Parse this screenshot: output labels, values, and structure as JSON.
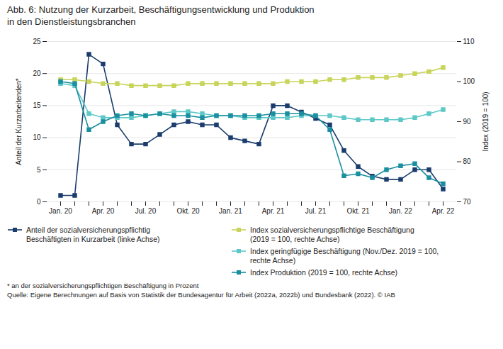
{
  "chart_data": {
    "type": "line",
    "title": "Abb. 6: Nutzung der Kurzarbeit, Beschäftigungsentwicklung und Produktion\nin den Dienstleistungsbranchen",
    "ylabel": "Anteil der Kurzarbeitenden*",
    "y2label": "Index (2019 = 100)",
    "categories": [
      "Jan. 20",
      null,
      null,
      "Apr. 20",
      null,
      null,
      "Jul. 20",
      null,
      null,
      "Okt. 20",
      null,
      null,
      "Jan. 21",
      null,
      null,
      "Apr. 21",
      null,
      null,
      "Jul. 21",
      null,
      null,
      "Okt. 21",
      null,
      null,
      "Jan. 22",
      null,
      null,
      "Apr. 22"
    ],
    "ylim": [
      0,
      25
    ],
    "yticks": [
      0,
      5,
      10,
      15,
      20,
      25
    ],
    "y2lim": [
      70,
      110
    ],
    "y2ticks": [
      70,
      80,
      90,
      100,
      110
    ],
    "grid": true,
    "legend": "bottom",
    "series": [
      {
        "name": "Anteil der sozialversicherungspflichtig\nBeschäftigten in Kurzarbeit (linke Achse)",
        "color": "#1b3d6e",
        "marker": "square",
        "axis": "y",
        "values": [
          1.0,
          1.0,
          23.0,
          21.5,
          12.0,
          9.0,
          9.0,
          10.5,
          12.0,
          12.5,
          12.0,
          12.0,
          10.0,
          9.5,
          9.0,
          15.0,
          15.0,
          14.0,
          13.0,
          12.0,
          8.0,
          5.5,
          4.0,
          3.5,
          3.5,
          5.0,
          5.0,
          2.0
        ]
      },
      {
        "name": "Index sozialversicherungspflichtige Beschäftigung\n(2019 = 100, rechte Achse)",
        "color": "#c8d45a",
        "marker": "square",
        "axis": "y2",
        "values": [
          100.5,
          100.5,
          100.0,
          99.5,
          99.5,
          99.0,
          99.0,
          99.0,
          99.0,
          99.5,
          99.5,
          99.5,
          99.5,
          99.5,
          99.5,
          99.5,
          100.0,
          100.0,
          100.0,
          100.5,
          100.5,
          101.0,
          101.0,
          101.0,
          101.5,
          102.0,
          102.5,
          103.5
        ]
      },
      {
        "name": "Index geringfügige Beschäftigung (Nov./Dez. 2019 = 100,\nrechte Achse)",
        "color": "#5ec8c8",
        "marker": "square",
        "axis": "y2",
        "values": [
          99.5,
          99.0,
          92.0,
          91.0,
          91.0,
          91.0,
          91.5,
          92.0,
          92.5,
          92.5,
          92.0,
          91.5,
          91.5,
          91.0,
          91.0,
          91.0,
          91.0,
          91.5,
          91.5,
          91.5,
          91.0,
          90.5,
          90.5,
          90.5,
          90.5,
          91.0,
          92.0,
          93.0
        ]
      },
      {
        "name": "Index Produktion (2019 = 100, rechte Achse)",
        "color": "#1a8fa0",
        "marker": "square",
        "axis": "y2",
        "values": [
          100.0,
          99.5,
          88.0,
          90.0,
          91.5,
          92.0,
          91.5,
          92.0,
          91.5,
          91.5,
          91.0,
          91.5,
          91.5,
          91.5,
          91.5,
          92.0,
          92.0,
          92.0,
          91.5,
          88.0,
          76.5,
          77.0,
          76.0,
          78.0,
          79.0,
          79.5,
          76.0,
          74.5
        ]
      }
    ],
    "annotations": [
      "* an der sozialversicherungspflichtigen Beschäftigung in Prozent",
      "Quelle: Eigene Berechnungen auf Basis von Statistik der Bundesagentur für Arbeit (2022a, 2022b) und Bundesbank (2022). © IAB"
    ]
  }
}
